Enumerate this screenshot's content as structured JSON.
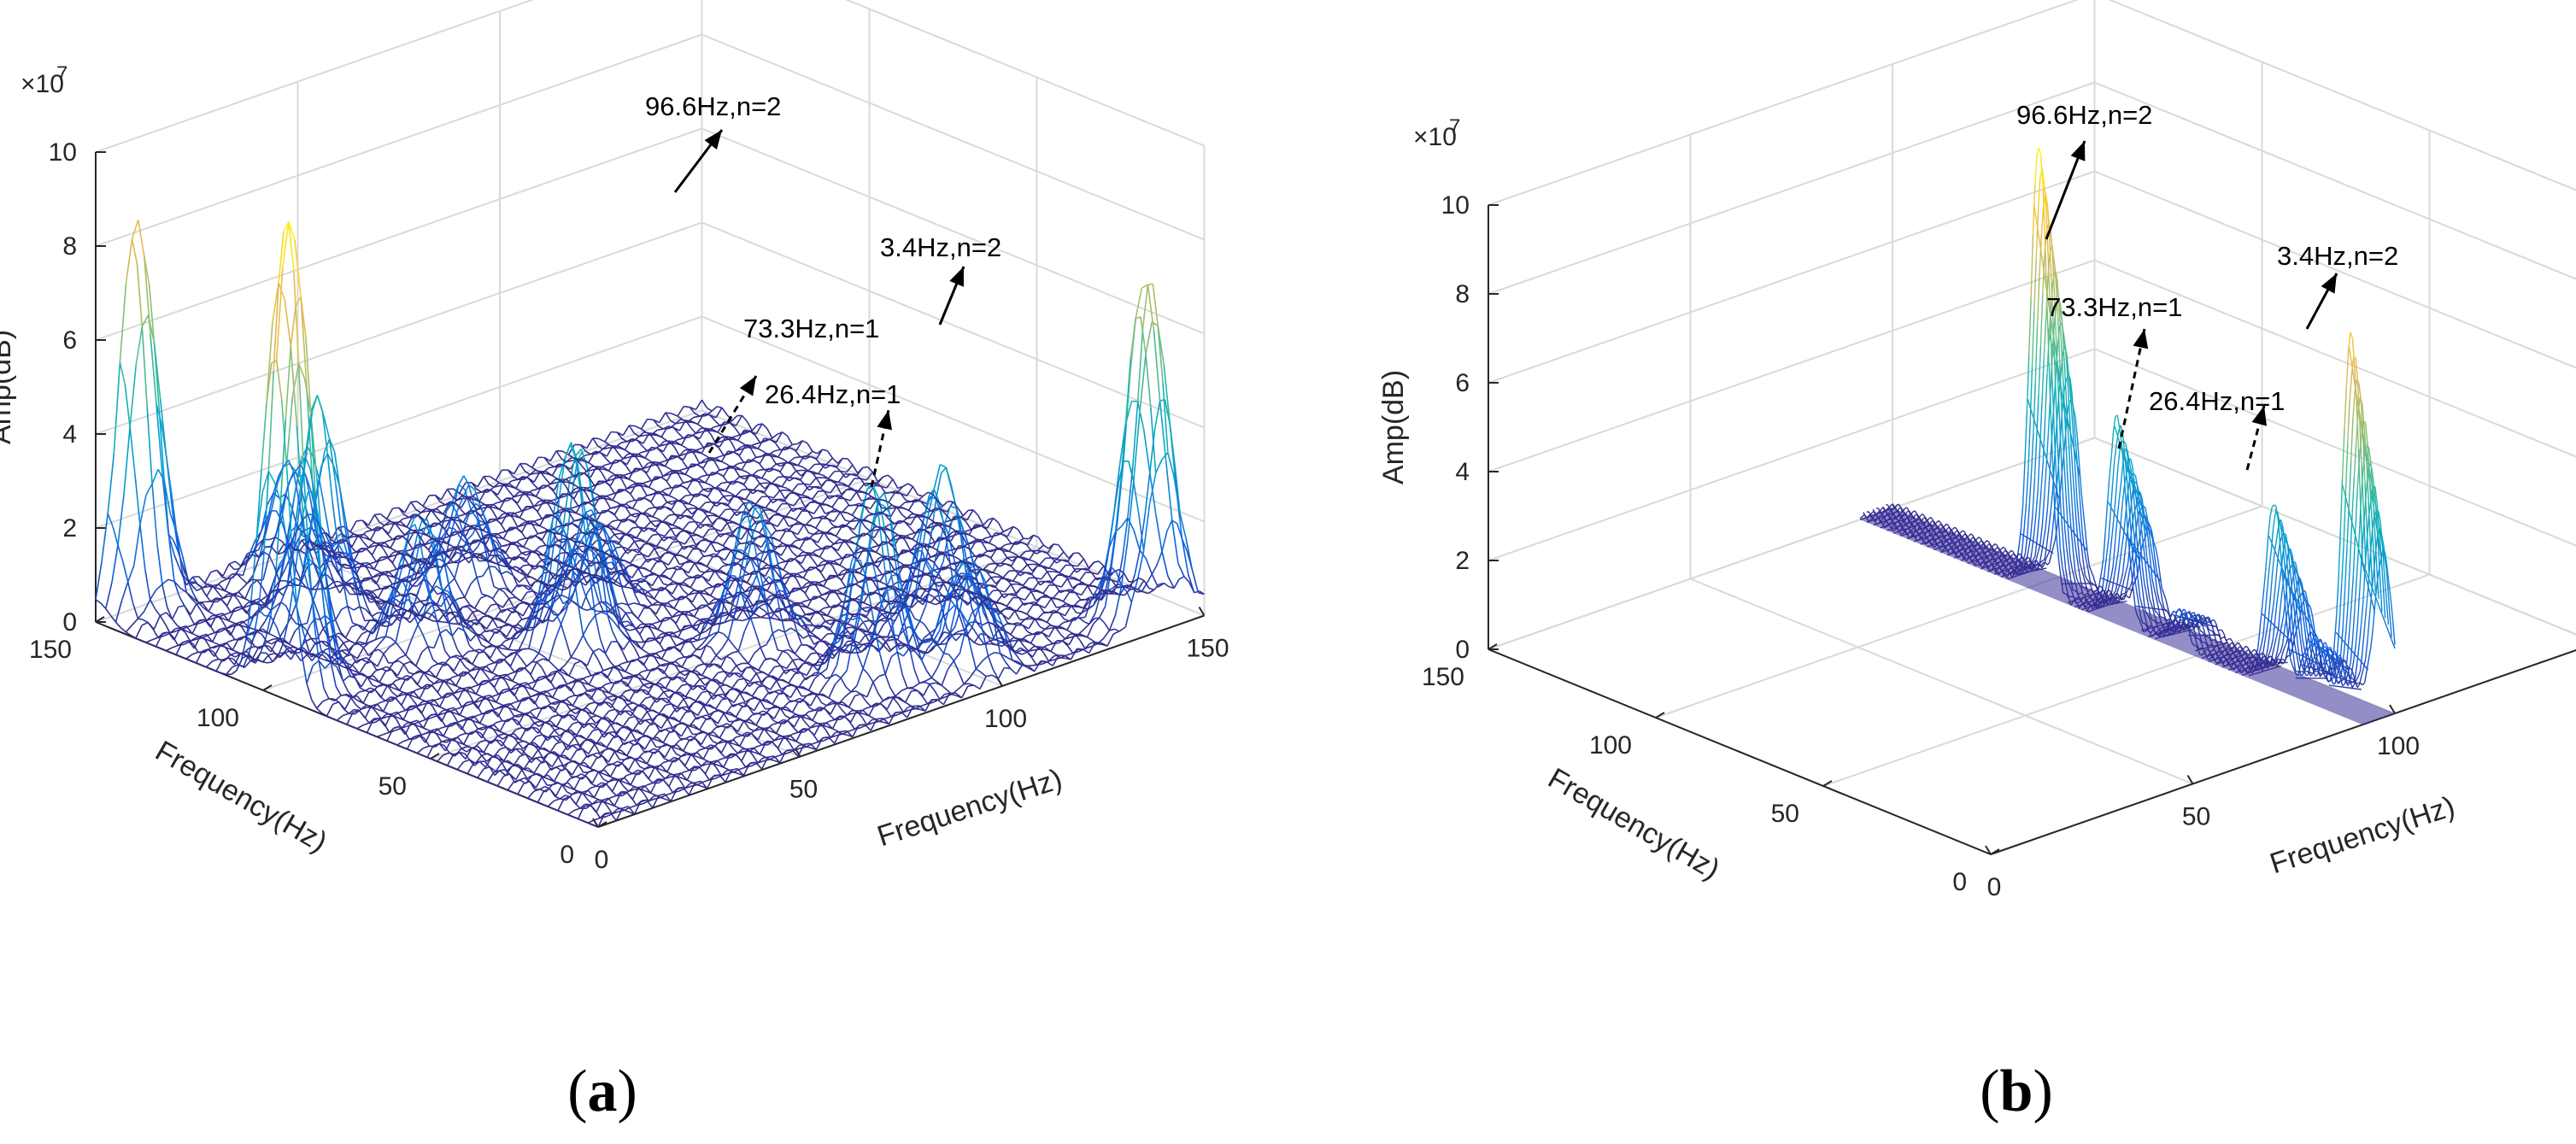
{
  "chart_data": [
    {
      "panel_label": "(a)",
      "caption_letter": "a",
      "type": "surface",
      "colormap": "parula",
      "view": "3D mesh",
      "grid": true,
      "zlabel": "Amp(dB)",
      "xlabel": "Frequency(Hz)",
      "ylabel": "Frequency(Hz)",
      "z_exponent": "×10",
      "z_exponent_power": "7",
      "zlim": [
        0,
        10
      ],
      "xlim": [
        0,
        150
      ],
      "ylim": [
        0,
        150
      ],
      "z_ticks": [
        "0",
        "2",
        "4",
        "6",
        "8",
        "10"
      ],
      "x_ticks": [
        "0",
        "50",
        "100",
        "150"
      ],
      "y_ticks": [
        "0",
        "50",
        "100",
        "150"
      ],
      "annotations": [
        {
          "text": "96.6Hz,n=2",
          "style": "solid"
        },
        {
          "text": "73.3Hz,n=1",
          "style": "dashed"
        },
        {
          "text": "26.4Hz,n=1",
          "style": "dashed"
        },
        {
          "text": "3.4Hz,n=2",
          "style": "solid"
        }
      ],
      "peaks": [
        {
          "fx": 10,
          "fy": 150,
          "amp": 8.1,
          "label": ""
        },
        {
          "fx": 3.4,
          "fy": 96.6,
          "amp": 10.0,
          "label": "96.6Hz,n=2"
        },
        {
          "fx": 140,
          "fy": 5,
          "amp": 7.3,
          "label": "3.4Hz,n=2"
        },
        {
          "fx": 85,
          "fy": 20,
          "amp": 4.2,
          "label": "26.4Hz,n=1"
        },
        {
          "fx": 55,
          "fy": 73.3,
          "amp": 4.5,
          "label": "73.3Hz,n=1"
        },
        {
          "fx": 30,
          "fy": 120,
          "amp": 4.6,
          "label": ""
        },
        {
          "fx": 35,
          "fy": 95,
          "amp": 2.8,
          "label": ""
        },
        {
          "fx": 40,
          "fy": 140,
          "amp": 2.5,
          "label": ""
        },
        {
          "fx": 60,
          "fy": 112,
          "amp": 2.2,
          "label": ""
        },
        {
          "fx": 80,
          "fy": 50,
          "amp": 3.0,
          "label": ""
        },
        {
          "fx": 110,
          "fy": 30,
          "amp": 3.4,
          "label": ""
        },
        {
          "fx": 100,
          "fy": 10,
          "amp": 2.4,
          "label": ""
        },
        {
          "fx": 70,
          "fy": 86,
          "amp": 2.0,
          "label": ""
        }
      ]
    },
    {
      "panel_label": "(b)",
      "caption_letter": "b",
      "type": "surface",
      "colormap": "parula",
      "view": "3D mesh (slice)",
      "grid": true,
      "zlabel": "Amp(dB)",
      "xlabel": "Frequency(Hz)",
      "ylabel": "Frequency(Hz)",
      "z_exponent": "×10",
      "z_exponent_power": "7",
      "zlim": [
        0,
        10
      ],
      "xlim": [
        0,
        150
      ],
      "ylim": [
        0,
        150
      ],
      "z_ticks": [
        "0",
        "2",
        "4",
        "6",
        "8",
        "10"
      ],
      "x_ticks": [
        "0",
        "50",
        "100",
        "150"
      ],
      "y_ticks": [
        "0",
        "50",
        "100",
        "150"
      ],
      "annotations": [
        {
          "text": "96.6Hz,n=2",
          "style": "solid"
        },
        {
          "text": "73.3Hz,n=1",
          "style": "dashed"
        },
        {
          "text": "26.4Hz,n=1",
          "style": "dashed"
        },
        {
          "text": "3.4Hz,n=2",
          "style": "solid"
        }
      ],
      "peaks": [
        {
          "fy": 96.6,
          "amp": 10.0,
          "label": "96.6Hz,n=2"
        },
        {
          "fy": 73.3,
          "amp": 4.6,
          "label": "73.3Hz,n=1"
        },
        {
          "fy": 26.4,
          "amp": 4.1,
          "label": "26.4Hz,n=1"
        },
        {
          "fy": 3.4,
          "amp": 8.6,
          "label": "3.4Hz,n=2"
        },
        {
          "fy": 15,
          "amp": 1.5,
          "label": ""
        },
        {
          "fy": 55,
          "amp": 0.8,
          "label": ""
        }
      ]
    }
  ]
}
